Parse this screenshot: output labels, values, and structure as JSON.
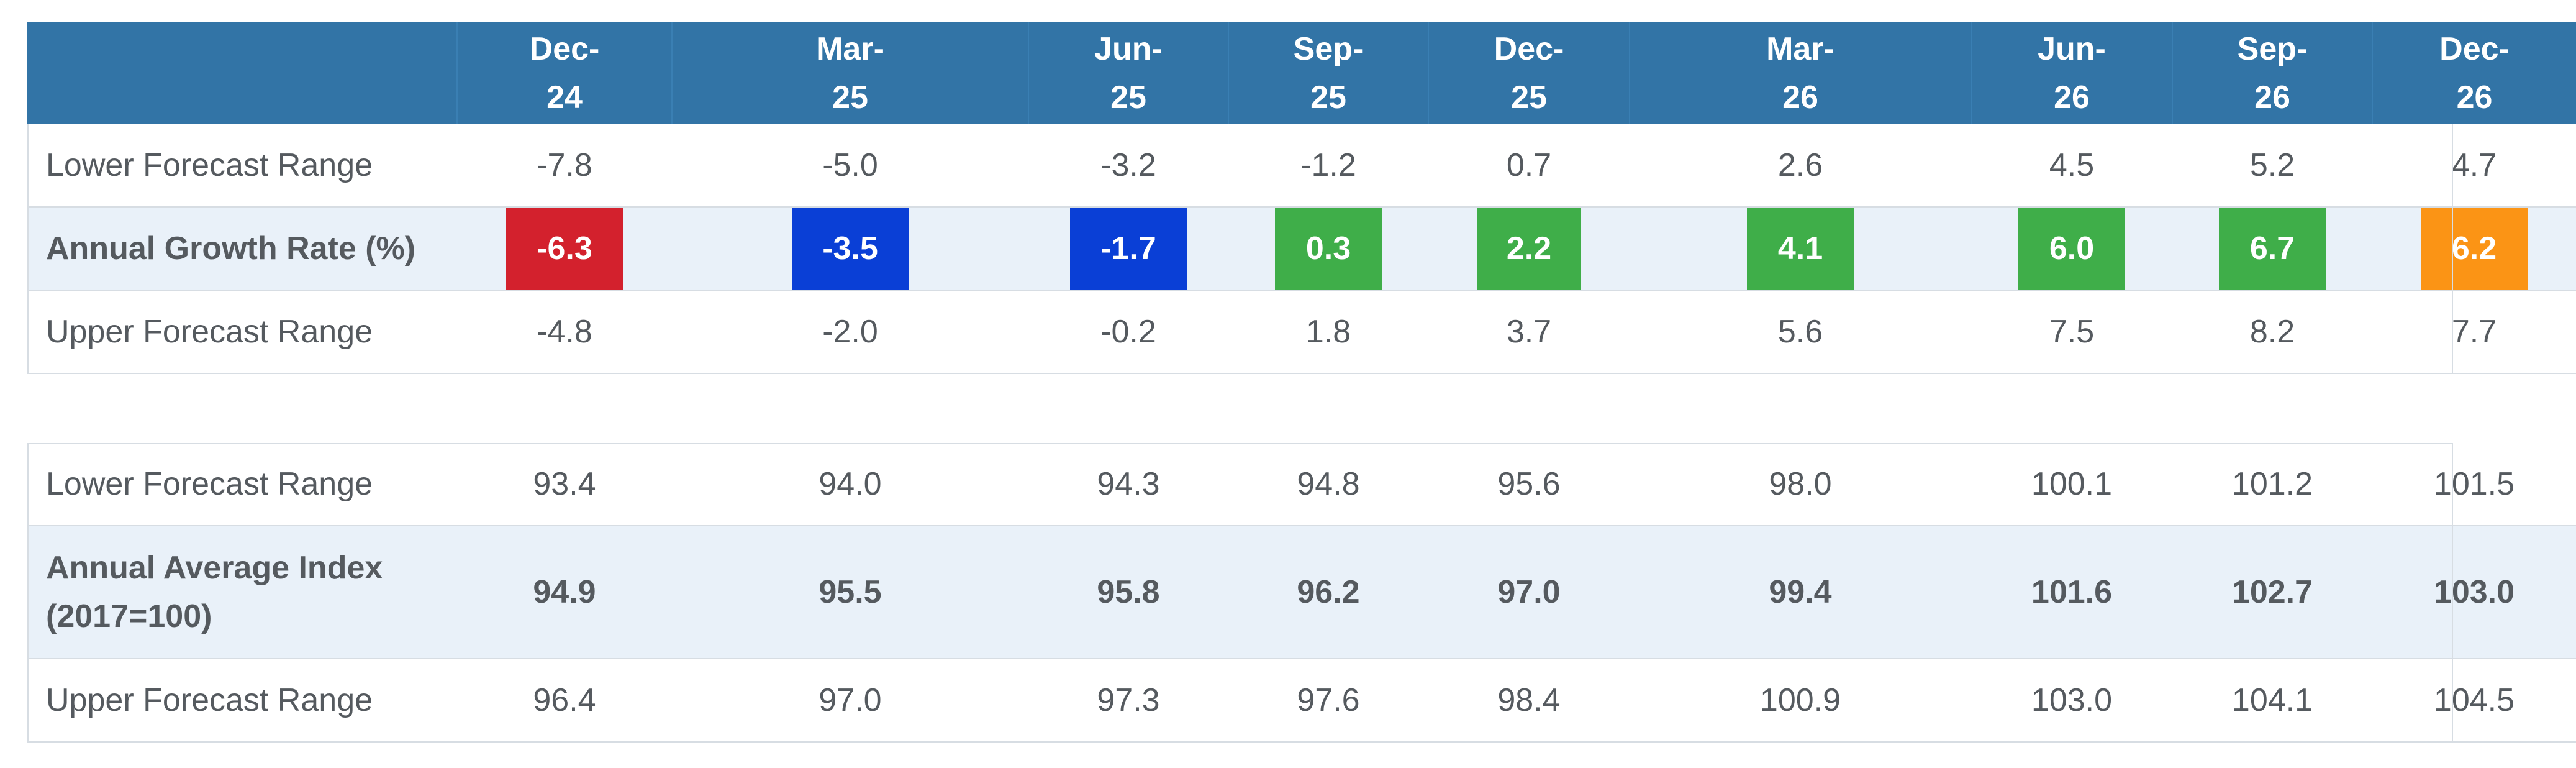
{
  "columns": [
    "Dec-\n24",
    "Mar-\n25",
    "Jun-\n25",
    "Sep-\n25",
    "Dec-\n25",
    "Mar-\n26",
    "Jun-\n26",
    "Sep-\n26",
    "Dec-\n26"
  ],
  "header": [
    {
      "line1": "Dec-",
      "line2": "24"
    },
    {
      "line1": "Mar-",
      "line2": "25"
    },
    {
      "line1": "Jun-",
      "line2": "25"
    },
    {
      "line1": "Sep-",
      "line2": "25"
    },
    {
      "line1": "Dec-",
      "line2": "25"
    },
    {
      "line1": "Mar-",
      "line2": "26"
    },
    {
      "line1": "Jun-",
      "line2": "26"
    },
    {
      "line1": "Sep-",
      "line2": "26"
    },
    {
      "line1": "Dec-",
      "line2": "26"
    }
  ],
  "colors": {
    "header_bg": "#3274a6",
    "highlight_row_bg": "#e9f1f9",
    "red": "#d3212d",
    "blue": "#0a3fd6",
    "green": "#3fae49",
    "orange": "#fb9415"
  },
  "growth_table": {
    "lower": {
      "label": "Lower Forecast Range",
      "values": [
        "-7.8",
        "-5.0",
        "-3.2",
        "-1.2",
        "0.7",
        "2.6",
        "4.5",
        "5.2",
        "4.7"
      ]
    },
    "rate": {
      "label": "Annual Growth Rate (%)",
      "values": [
        "-6.3",
        "-3.5",
        "-1.7",
        "0.3",
        "2.2",
        "4.1",
        "6.0",
        "6.7",
        "6.2"
      ],
      "badge_colors": [
        "red",
        "blue",
        "blue",
        "green",
        "green",
        "green",
        "green",
        "green",
        "orange"
      ]
    },
    "upper": {
      "label": "Upper Forecast Range",
      "values": [
        "-4.8",
        "-2.0",
        "-0.2",
        "1.8",
        "3.7",
        "5.6",
        "7.5",
        "8.2",
        "7.7"
      ]
    }
  },
  "index_table": {
    "lower": {
      "label": "Lower Forecast Range",
      "values": [
        "93.4",
        "94.0",
        "94.3",
        "94.8",
        "95.6",
        "98.0",
        "100.1",
        "101.2",
        "101.5"
      ]
    },
    "average": {
      "label_line1": "Annual Average Index",
      "label_line2": "(2017=100)",
      "values": [
        "94.9",
        "95.5",
        "95.8",
        "96.2",
        "97.0",
        "99.4",
        "101.6",
        "102.7",
        "103.0"
      ]
    },
    "upper": {
      "label": "Upper Forecast Range",
      "values": [
        "96.4",
        "97.0",
        "97.3",
        "97.6",
        "98.4",
        "100.9",
        "103.0",
        "104.1",
        "104.5"
      ]
    }
  }
}
